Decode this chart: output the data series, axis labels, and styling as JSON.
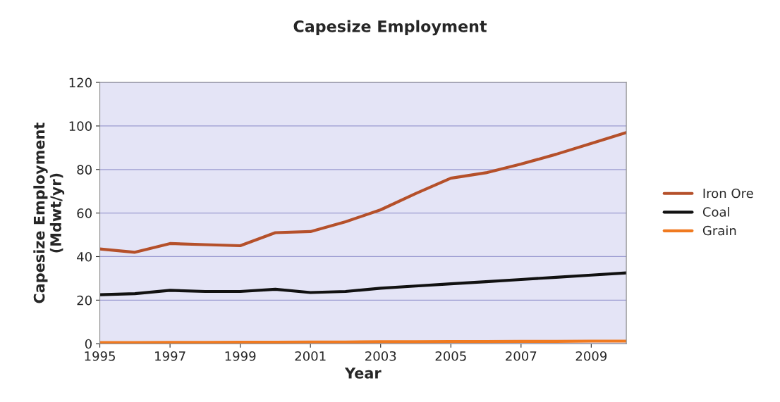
{
  "chart_data": {
    "type": "line",
    "title": "Capesize Employment",
    "xlabel": "Year",
    "ylabel": "Capesize Employment\n(Mdwt/yr)",
    "x": [
      1995,
      1996,
      1997,
      1998,
      1999,
      2000,
      2001,
      2002,
      2003,
      2004,
      2005,
      2006,
      2007,
      2008,
      2009,
      2010
    ],
    "series": [
      {
        "name": "Iron Ore",
        "color": "#b5502a",
        "values": [
          43.5,
          42,
          46,
          45.5,
          45,
          51,
          51.5,
          56,
          61.5,
          69,
          76,
          78.5,
          82.5,
          87,
          92,
          97
        ]
      },
      {
        "name": "Coal",
        "color": "#111111",
        "values": [
          22.5,
          23,
          24.5,
          24,
          24,
          25,
          23.5,
          24,
          25.5,
          26.5,
          27.5,
          28.5,
          29.5,
          30.5,
          31.5,
          32.5
        ]
      },
      {
        "name": "Grain",
        "color": "#f07a20",
        "values": [
          0.5,
          0.5,
          0.6,
          0.6,
          0.7,
          0.7,
          0.8,
          0.8,
          0.9,
          0.9,
          1,
          1,
          1.1,
          1.1,
          1.2,
          1.2
        ]
      }
    ],
    "xlim": [
      1995,
      2010
    ],
    "xticks": [
      1995,
      1997,
      1999,
      2001,
      2003,
      2005,
      2007,
      2009
    ],
    "ylim": [
      0,
      120
    ],
    "yticks": [
      0,
      20,
      40,
      60,
      80,
      100,
      120
    ],
    "grid": "y",
    "legend": "right",
    "marker": "none",
    "line_style": "solid"
  }
}
